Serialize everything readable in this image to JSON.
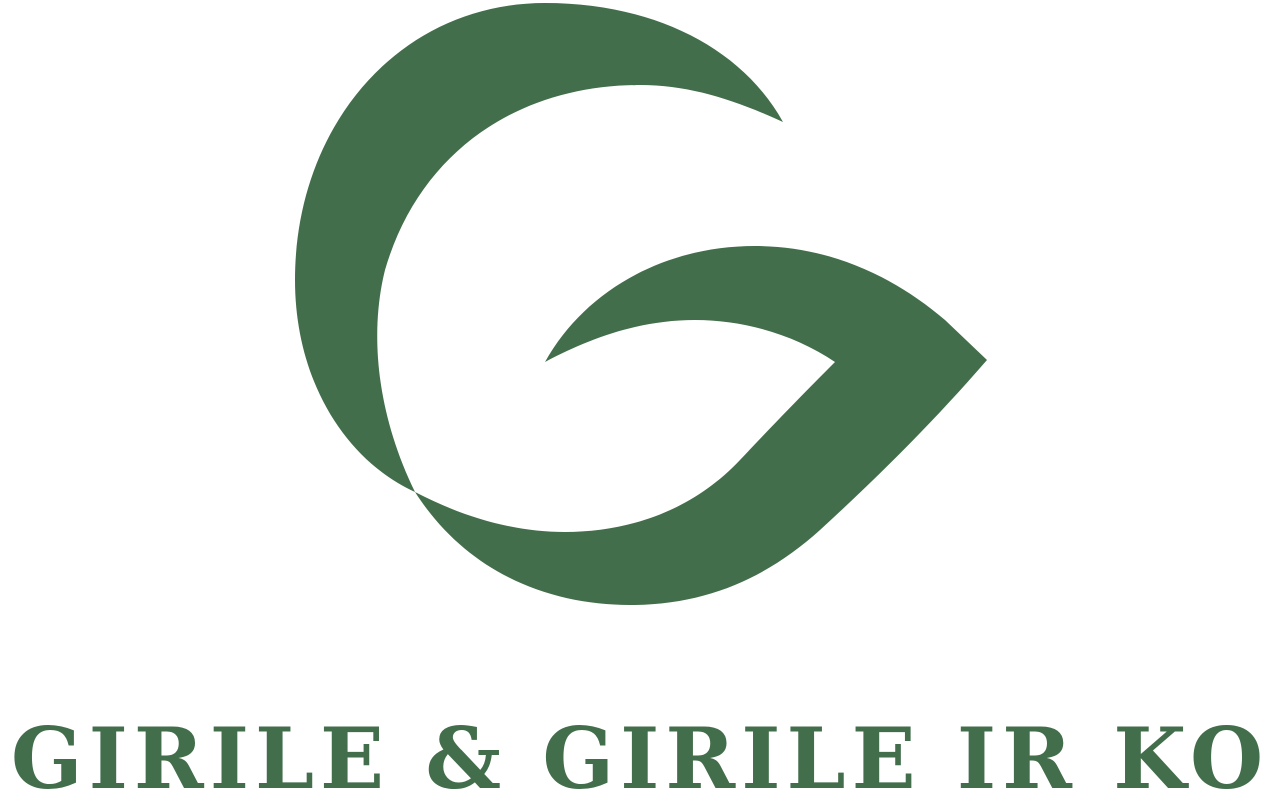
{
  "brand": {
    "name": "GIRILE & GIRILE IR KO",
    "color": "#436e4b",
    "background": "#ffffff",
    "logo_icon": "g-leaf-logo-icon"
  }
}
